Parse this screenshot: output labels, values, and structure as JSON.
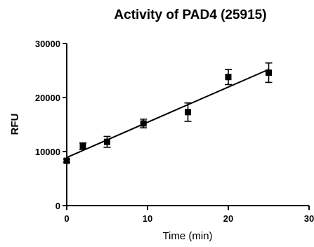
{
  "chart_data": {
    "type": "scatter",
    "title": "Activity of PAD4 (25915)",
    "xlabel": "Time (min)",
    "ylabel": "RFU",
    "xlim": [
      0,
      30
    ],
    "ylim": [
      0,
      30000
    ],
    "x_ticks": [
      "0",
      "10",
      "20",
      "30"
    ],
    "y_ticks": [
      "0",
      "10000",
      "20000",
      "30000"
    ],
    "grid": false,
    "series": [
      {
        "x": [
          0,
          2,
          5,
          9.5,
          15,
          20,
          25
        ],
        "y": [
          8300,
          11000,
          11800,
          15200,
          17300,
          23800,
          24600
        ],
        "error": [
          300,
          600,
          1000,
          800,
          1700,
          1400,
          1800
        ]
      }
    ],
    "fit_line": {
      "x": [
        0,
        25
      ],
      "y": [
        8900,
        25200
      ]
    },
    "colors": {
      "marker": "#000000",
      "line": "#000000"
    }
  }
}
